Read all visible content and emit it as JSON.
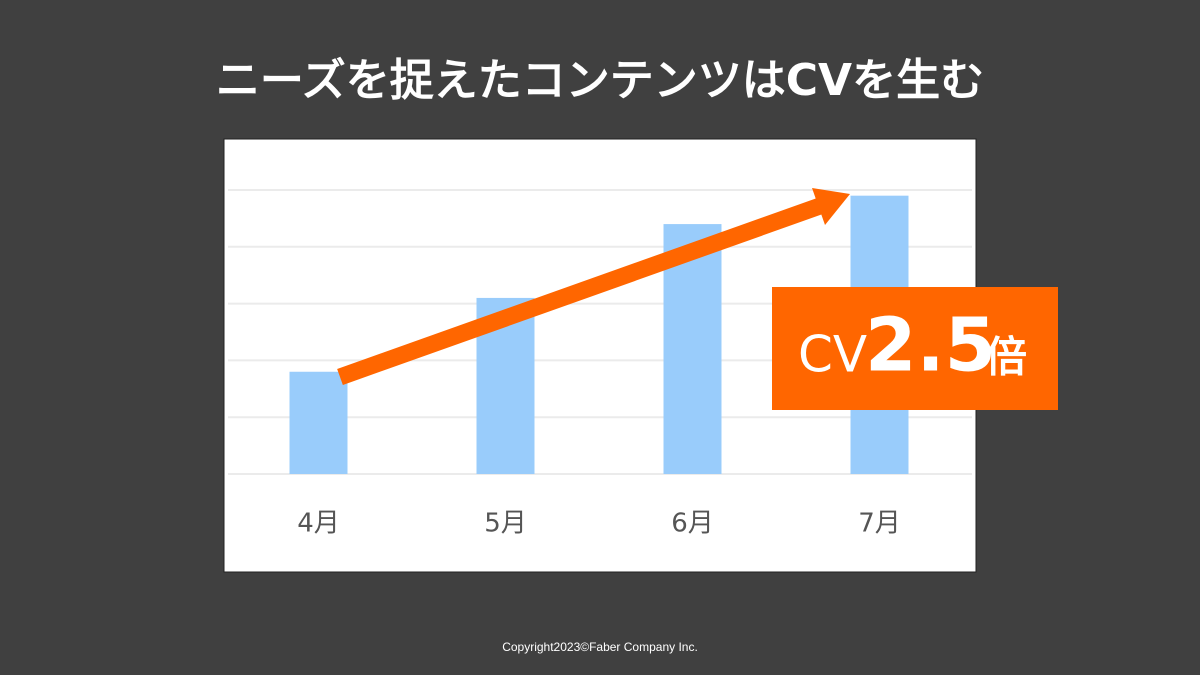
{
  "chart_data": {
    "type": "bar",
    "title": "ニーズを捉えたコンテンツはCVを生む",
    "categories": [
      "4月",
      "5月",
      "6月",
      "7月"
    ],
    "values": [
      1.8,
      3.1,
      4.4,
      4.9
    ],
    "color": "#99ccfb",
    "ylim": [
      0,
      5
    ],
    "yticks": [
      0,
      1,
      2,
      3,
      4,
      5
    ],
    "grid": true,
    "annotation": {
      "prefix": "CV",
      "value": "2.5",
      "suffix": "倍"
    }
  },
  "footer": "Copyright2023©Faber  Company  Inc."
}
